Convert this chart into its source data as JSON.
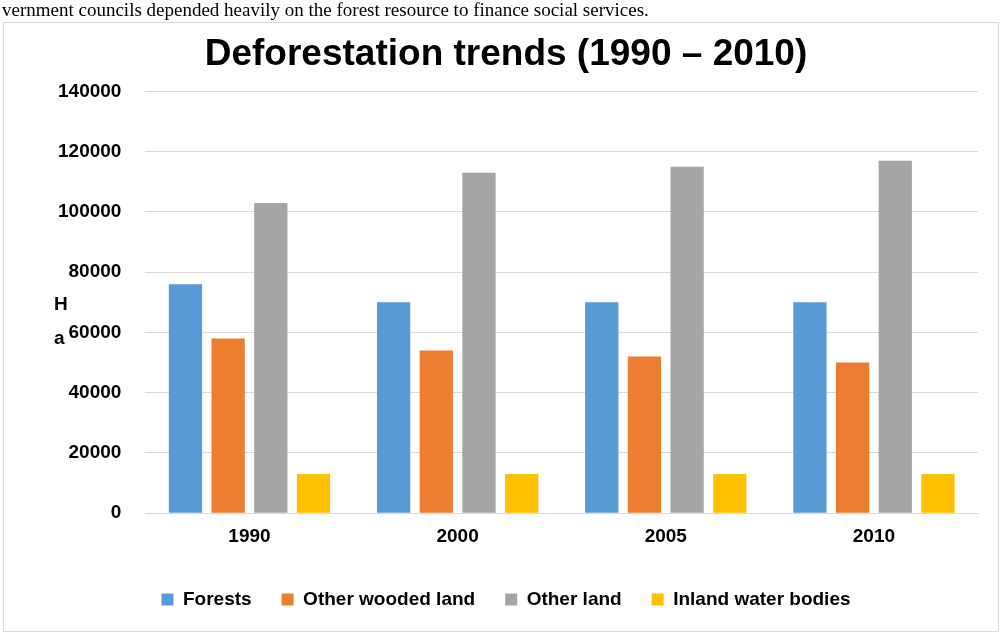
{
  "chart_data": {
    "type": "bar",
    "title": "Deforestation trends (1990 – 2010)",
    "ylabel": "Ha",
    "annotations": [
      "vernment councils depended heavily on the forest resource to finance social services."
    ],
    "categories": [
      "1990",
      "2000",
      "2005",
      "2010"
    ],
    "series": [
      {
        "name": "Forests",
        "color": "#5b9bd5",
        "values": [
          76000,
          70000,
          70000,
          70000
        ]
      },
      {
        "name": "Other wooded land",
        "color": "#ed7d31",
        "values": [
          58000,
          54000,
          52000,
          50000
        ]
      },
      {
        "name": "Other land",
        "color": "#a5a5a5",
        "values": [
          103000,
          113000,
          115000,
          117000
        ]
      },
      {
        "name": "Inland water bodies",
        "color": "#ffc000",
        "values": [
          13000,
          13000,
          13000,
          13000
        ]
      }
    ],
    "ylim": [
      0,
      140000
    ],
    "yticks": [
      0,
      20000,
      40000,
      60000,
      80000,
      100000,
      120000,
      140000
    ],
    "grid": "y",
    "legend": "bottom"
  }
}
